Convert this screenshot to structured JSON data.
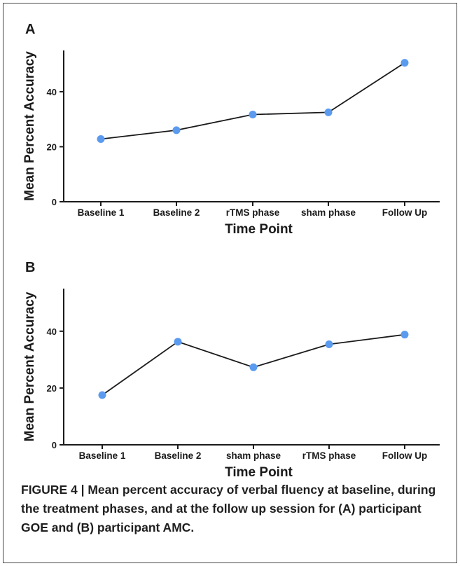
{
  "figure": {
    "caption": "FIGURE 4 | Mean percent accuracy of verbal fluency at baseline, during the treatment phases, and at the follow up session for (A) participant GOE and (B) participant AMC."
  },
  "colors": {
    "marker": "#5b9bef",
    "line": "#1a1a1a",
    "axis": "#1a1a1a"
  },
  "chart_data": [
    {
      "type": "line",
      "panel_label": "A",
      "categories": [
        "Baseline 1",
        "Baseline 2",
        "rTMS phase",
        "sham phase",
        "Follow Up"
      ],
      "values": [
        22.8,
        26.0,
        31.7,
        32.5,
        50.5
      ],
      "xlabel": "Time Point",
      "ylabel": "Mean Percent Accuracy",
      "yticks": [
        0,
        20,
        40
      ],
      "ylim": [
        0,
        55
      ],
      "grid": false,
      "legend": "none"
    },
    {
      "type": "line",
      "panel_label": "B",
      "categories": [
        "Baseline 1",
        "Baseline 2",
        "sham phase",
        "rTMS phase",
        "Follow Up"
      ],
      "values": [
        17.5,
        36.3,
        27.3,
        35.4,
        38.8
      ],
      "xlabel": "Time Point",
      "ylabel": "Mean Percent Accuracy",
      "yticks": [
        0,
        20,
        40
      ],
      "ylim": [
        0,
        55
      ],
      "grid": false,
      "legend": "none"
    }
  ]
}
